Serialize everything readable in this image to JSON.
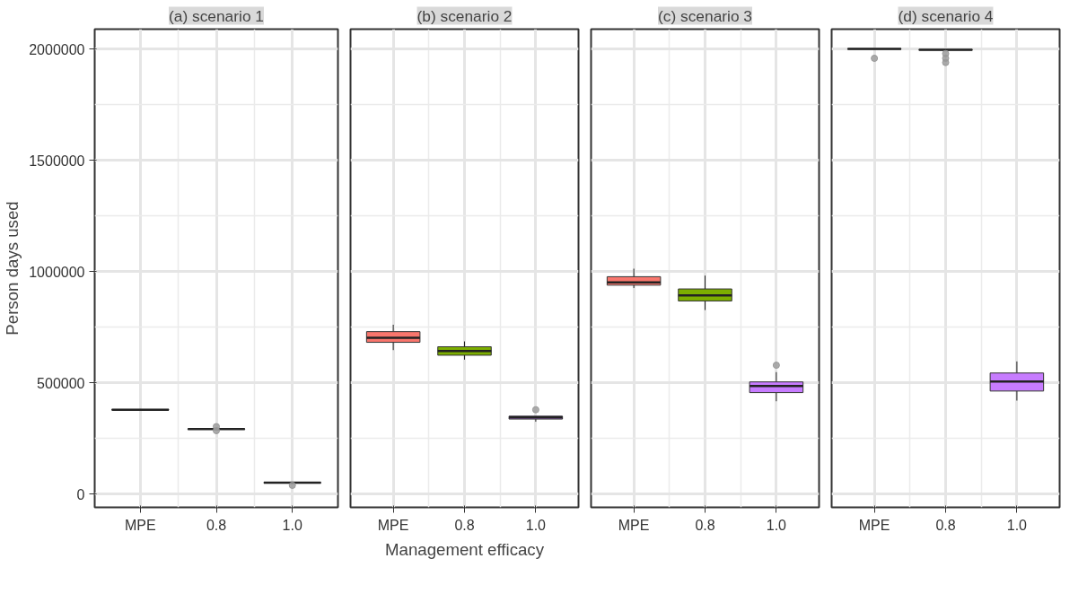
{
  "chart_data": [
    {
      "type": "box",
      "title": "(a) scenario 1",
      "ylabel": "Person days used",
      "categories": [
        "MPE",
        "0.8",
        "1.0"
      ],
      "colors": [
        "#f8766d",
        "#7cae00",
        "#c77cff"
      ],
      "ylim": [
        -60000,
        2090000
      ],
      "yticks": [
        0,
        500000,
        1000000,
        1500000,
        2000000
      ],
      "grid": true,
      "boxes": [
        {
          "low": 377000,
          "q1": 378000,
          "median": 379000,
          "q3": 380000,
          "high": 382000
        },
        {
          "low": 290000,
          "q1": 291000,
          "median": 292000,
          "q3": 293000,
          "high": 294000,
          "outliers": [
            303000,
            285000
          ]
        },
        {
          "low": 48000,
          "q1": 50000,
          "median": 51000,
          "q3": 52000,
          "high": 54000,
          "outliers": [
            39000
          ]
        }
      ]
    },
    {
      "type": "box",
      "title": "(b) scenario 2",
      "xlabel": "Management efficacy",
      "categories": [
        "MPE",
        "0.8",
        "1.0"
      ],
      "colors": [
        "#f8766d",
        "#7cae00",
        "#c77cff"
      ],
      "ylim": [
        -60000,
        2090000
      ],
      "yticks": [
        0,
        500000,
        1000000,
        1500000,
        2000000
      ],
      "grid": true,
      "tick_labels": "x",
      "boxes": [
        {
          "low": 647000,
          "q1": 682000,
          "median": 702000,
          "q3": 730000,
          "high": 761000
        },
        {
          "low": 604000,
          "q1": 624000,
          "median": 643000,
          "q3": 662000,
          "high": 686000
        },
        {
          "low": 325000,
          "q1": 337000,
          "median": 344000,
          "q3": 350000,
          "high": 350000,
          "outliers": [
            379000
          ]
        }
      ]
    },
    {
      "type": "box",
      "title": "(c) scenario 3",
      "categories": [
        "MPE",
        "0.8",
        "1.0"
      ],
      "colors": [
        "#f8766d",
        "#7cae00",
        "#c77cff"
      ],
      "ylim": [
        -60000,
        2090000
      ],
      "yticks": [
        0,
        500000,
        1000000,
        1500000,
        2000000
      ],
      "grid": true,
      "tick_labels": "x",
      "boxes": [
        {
          "low": 926000,
          "q1": 939000,
          "median": 951000,
          "q3": 977000,
          "high": 1013000
        },
        {
          "low": 827000,
          "q1": 868000,
          "median": 893000,
          "q3": 922000,
          "high": 982000
        },
        {
          "low": 417000,
          "q1": 456000,
          "median": 486000,
          "q3": 504000,
          "high": 548000,
          "outliers": [
            579000
          ]
        }
      ]
    },
    {
      "type": "box",
      "title": "(d) scenario 4",
      "categories": [
        "MPE",
        "0.8",
        "1.0"
      ],
      "colors": [
        "#f8766d",
        "#7cae00",
        "#c77cff"
      ],
      "ylim": [
        -60000,
        2090000
      ],
      "yticks": [
        0,
        500000,
        1000000,
        1500000,
        2000000
      ],
      "grid": true,
      "tick_labels": "x",
      "boxes": [
        {
          "low": 1999000,
          "q1": 2000000,
          "median": 2001000,
          "q3": 2002000,
          "high": 2003000,
          "outliers": [
            1959000
          ]
        },
        {
          "low": 1995000,
          "q1": 1996000,
          "median": 1997000,
          "q3": 1998000,
          "high": 1999000,
          "outliers": [
            1980000,
            1959000,
            1940000
          ]
        },
        {
          "low": 420000,
          "q1": 463000,
          "median": 506000,
          "q3": 544000,
          "high": 596000
        }
      ]
    }
  ]
}
